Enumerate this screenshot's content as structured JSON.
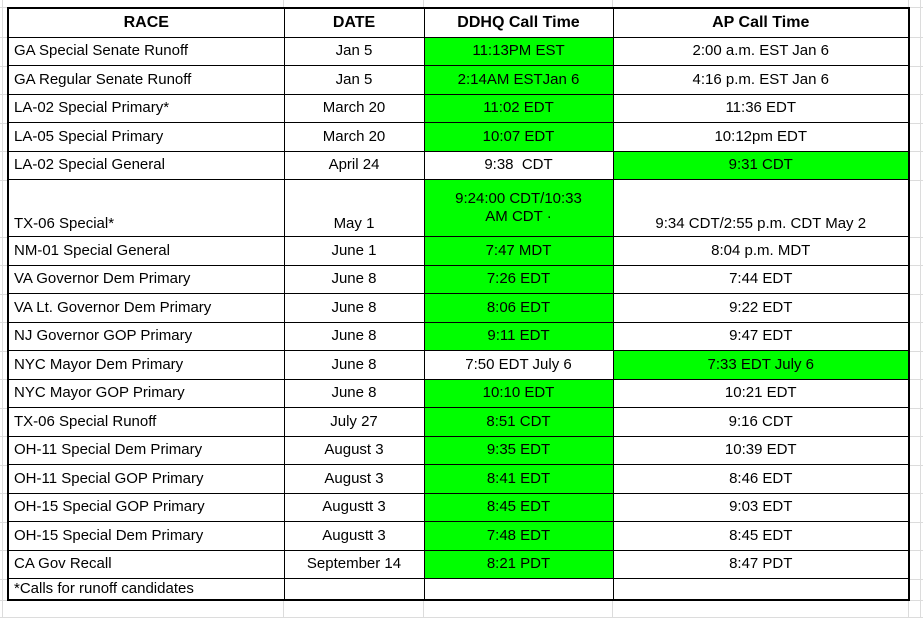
{
  "table": {
    "columns": [
      "RACE",
      "DATE",
      "DDHQ Call Time",
      "AP Call Time"
    ],
    "highlight_color": "#00ff00",
    "footnote": "*Calls for runoff candidates",
    "rows": [
      {
        "race": "GA Special Senate Runoff",
        "date": "Jan 5",
        "ddhq": "11:13PM EST",
        "ap": "2:00 a.m. EST Jan 6",
        "ddhq_highlight": true,
        "ap_highlight": false
      },
      {
        "race": "GA Regular Senate Runoff",
        "date": "Jan 5",
        "ddhq": "2:14AM ESTJan 6",
        "ap": "4:16 p.m. EST Jan 6",
        "ddhq_highlight": true,
        "ap_highlight": false
      },
      {
        "race": "LA-02 Special Primary*",
        "date": "March 20",
        "ddhq": "11:02 EDT",
        "ap": "11:36 EDT",
        "ddhq_highlight": true,
        "ap_highlight": false
      },
      {
        "race": "LA-05 Special Primary",
        "date": "March 20",
        "ddhq": "10:07 EDT",
        "ap": "10:12pm EDT",
        "ddhq_highlight": true,
        "ap_highlight": false
      },
      {
        "race": "LA-02 Special General",
        "date": "April 24",
        "ddhq": "9:38  CDT",
        "ap": "9:31 CDT",
        "ddhq_highlight": false,
        "ap_highlight": true
      },
      {
        "race": "TX-06 Special*",
        "date": "May 1",
        "ddhq": "9:24:00 CDT/10:33\nAM CDT ·",
        "ap": "9:34 CDT/2:55 p.m. CDT May 2",
        "ddhq_highlight": true,
        "ap_highlight": false
      },
      {
        "race": "NM-01 Special General",
        "date": "June 1",
        "ddhq": "7:47 MDT",
        "ap": "8:04 p.m. MDT",
        "ddhq_highlight": true,
        "ap_highlight": false
      },
      {
        "race": "VA Governor Dem Primary",
        "date": "June 8",
        "ddhq": "7:26 EDT",
        "ap": "7:44 EDT",
        "ddhq_highlight": true,
        "ap_highlight": false
      },
      {
        "race": "VA Lt. Governor Dem Primary",
        "date": "June 8",
        "ddhq": "8:06 EDT",
        "ap": "9:22 EDT",
        "ddhq_highlight": true,
        "ap_highlight": false
      },
      {
        "race": "NJ Governor GOP Primary",
        "date": "June 8",
        "ddhq": "9:11 EDT",
        "ap": "9:47 EDT",
        "ddhq_highlight": true,
        "ap_highlight": false
      },
      {
        "race": "NYC Mayor Dem Primary",
        "date": "June 8",
        "ddhq": "7:50 EDT July 6",
        "ap": "7:33 EDT July 6",
        "ddhq_highlight": false,
        "ap_highlight": true
      },
      {
        "race": "NYC Mayor GOP Primary",
        "date": "June 8",
        "ddhq": "10:10 EDT",
        "ap": "10:21 EDT",
        "ddhq_highlight": true,
        "ap_highlight": false
      },
      {
        "race": "TX-06 Special Runoff",
        "date": "July 27",
        "ddhq": "8:51 CDT",
        "ap": "9:16 CDT",
        "ddhq_highlight": true,
        "ap_highlight": false
      },
      {
        "race": "OH-11 Special Dem Primary",
        "date": "August 3",
        "ddhq": "9:35 EDT",
        "ap": "10:39 EDT",
        "ddhq_highlight": true,
        "ap_highlight": false
      },
      {
        "race": "OH-11 Special GOP Primary",
        "date": "August 3",
        "ddhq": "8:41 EDT",
        "ap": "8:46 EDT",
        "ddhq_highlight": true,
        "ap_highlight": false
      },
      {
        "race": "OH-15 Special GOP Primary",
        "date": "Augustt 3",
        "ddhq": "8:45 EDT",
        "ap": "9:03 EDT",
        "ddhq_highlight": true,
        "ap_highlight": false
      },
      {
        "race": "OH-15 Special Dem Primary",
        "date": "Augustt 3",
        "ddhq": "7:48 EDT",
        "ap": "8:45 EDT",
        "ddhq_highlight": true,
        "ap_highlight": false
      },
      {
        "race": "CA Gov Recall",
        "date": "September 14",
        "ddhq": "8:21 PDT",
        "ap": "8:47 PDT",
        "ddhq_highlight": true,
        "ap_highlight": false
      },
      {
        "race": "*Calls for runoff candidates",
        "date": "",
        "ddhq": "",
        "ap": "",
        "ddhq_highlight": false,
        "ap_highlight": false
      }
    ]
  }
}
